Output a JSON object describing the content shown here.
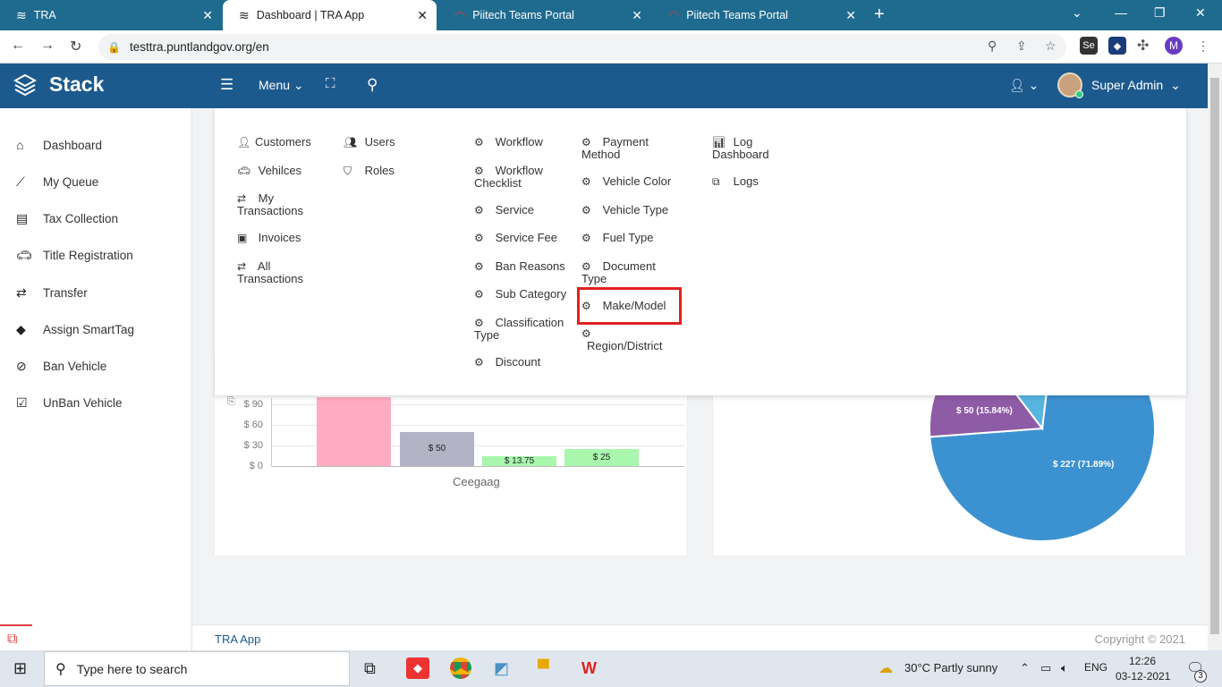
{
  "browser": {
    "tabs": [
      {
        "title": "TRA",
        "active": false
      },
      {
        "title": "Dashboard | TRA App",
        "active": true
      },
      {
        "title": "Piitech Teams Portal",
        "active": false
      },
      {
        "title": "Piitech Teams Portal",
        "active": false
      }
    ],
    "url": "testtra.puntlandgov.org/en",
    "profile_initial": "M"
  },
  "header": {
    "brand": "Stack",
    "menu_label": "Menu",
    "user_name": "Super Admin"
  },
  "sidebar": {
    "items": [
      {
        "label": "Dashboard",
        "icon": "home-icon"
      },
      {
        "label": "My Queue",
        "icon": "trend-icon"
      },
      {
        "label": "Tax Collection",
        "icon": "list-icon"
      },
      {
        "label": "Title Registration",
        "icon": "car-icon"
      },
      {
        "label": "Transfer",
        "icon": "exchange-icon"
      },
      {
        "label": "Assign SmartTag",
        "icon": "tags-icon"
      },
      {
        "label": "Ban Vehicle",
        "icon": "ban-icon"
      },
      {
        "label": "UnBan Vehicle",
        "icon": "check-square-icon"
      }
    ]
  },
  "mega_menu": {
    "col1": [
      "Customers",
      "Vehilces",
      "My",
      "Transactions",
      "Invoices",
      "All",
      "Transactions"
    ],
    "col2": [
      "Users",
      "Roles"
    ],
    "col3": [
      "Workflow",
      "Workflow",
      "Checklist",
      "Service",
      "Service Fee",
      "Ban Reasons",
      "Sub Category",
      "Classification",
      "Type",
      "Discount"
    ],
    "col4": [
      "Payment",
      "Method",
      "Vehicle Color",
      "Vehicle Type",
      "Fuel Type",
      "Document",
      "Type",
      "Make/Model",
      "Region/District"
    ],
    "col5": [
      "Log",
      "Dashboard",
      "Logs"
    ]
  },
  "chart_data": [
    {
      "type": "bar",
      "categories": [
        "Ceegaag"
      ],
      "series": [
        {
          "values": [
            100
          ],
          "color": "#ffabc0"
        },
        {
          "values": [
            50
          ],
          "color": "#b3b3c6"
        },
        {
          "values": [
            13.75
          ],
          "color": "#a8f7ad"
        },
        {
          "values": [
            25
          ],
          "color": "#a8f7ad"
        }
      ],
      "bar_labels": [
        "",
        "$ 50",
        "$ 13.75",
        "$ 25"
      ],
      "yticks": [
        "$ 90",
        "$ 60",
        "$ 30",
        "$ 0"
      ],
      "xlabel": "Ceegaag"
    },
    {
      "type": "pie",
      "slices": [
        {
          "label": "$ 227  (71.89%)",
          "value": 227,
          "color": "#3c92d0"
        },
        {
          "label": "$ 50  (15.84%)",
          "value": 50,
          "color": "#8e5ba6"
        }
      ]
    }
  ],
  "footer": {
    "app": "TRA App",
    "copyright": "Copyright © 2021"
  },
  "taskbar": {
    "search_placeholder": "Type here to search",
    "weather": "30°C  Partly sunny",
    "lang": "ENG",
    "time": "12:26",
    "date": "03-12-2021",
    "notifications": "3"
  }
}
